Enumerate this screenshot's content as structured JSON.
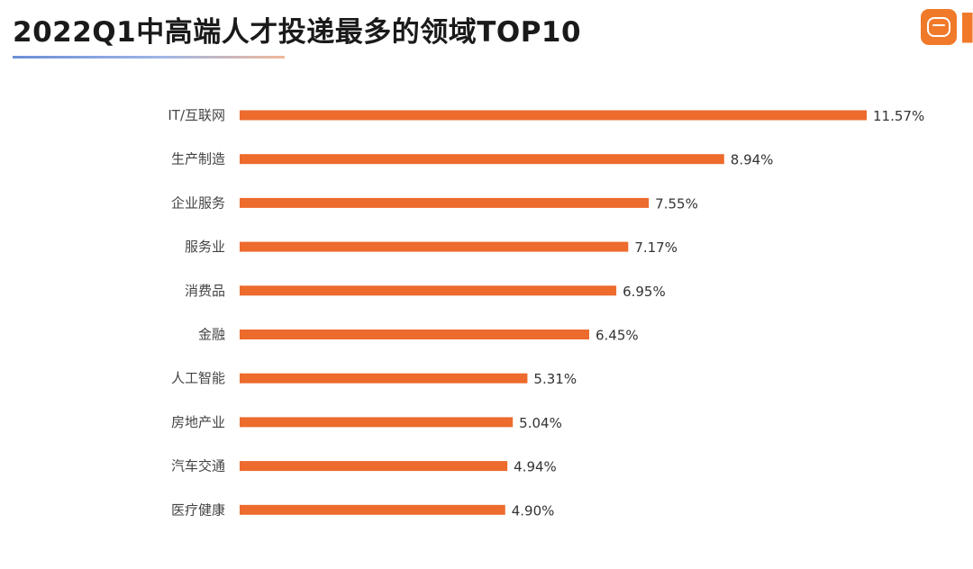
{
  "page": {
    "title": "2022Q1中高端人才投递最多的领域TOP10",
    "logo_icon": "zhaopin-chat-bubble-icon",
    "accent_color": "#f07a2a"
  },
  "chart_data": {
    "type": "bar",
    "orientation": "horizontal",
    "title": "2022Q1中高端人才投递最多的领域TOP10",
    "xlabel": "",
    "ylabel": "",
    "categories": [
      "IT/互联网",
      "生产制造",
      "企业服务",
      "服务业",
      "消费品",
      "金融",
      "人工智能",
      "房地产业",
      "汽车交通",
      "医疗健康"
    ],
    "values": [
      11.57,
      8.94,
      7.55,
      7.17,
      6.95,
      6.45,
      5.31,
      5.04,
      4.94,
      4.9
    ],
    "value_labels": [
      "11.57%",
      "8.94%",
      "7.55%",
      "7.17%",
      "6.95%",
      "6.45%",
      "5.31%",
      "5.04%",
      "4.94%",
      "4.90%"
    ],
    "xlim": [
      0,
      11.57
    ],
    "bar_color": "#ec6b2d",
    "grid": false,
    "legend": "none"
  }
}
